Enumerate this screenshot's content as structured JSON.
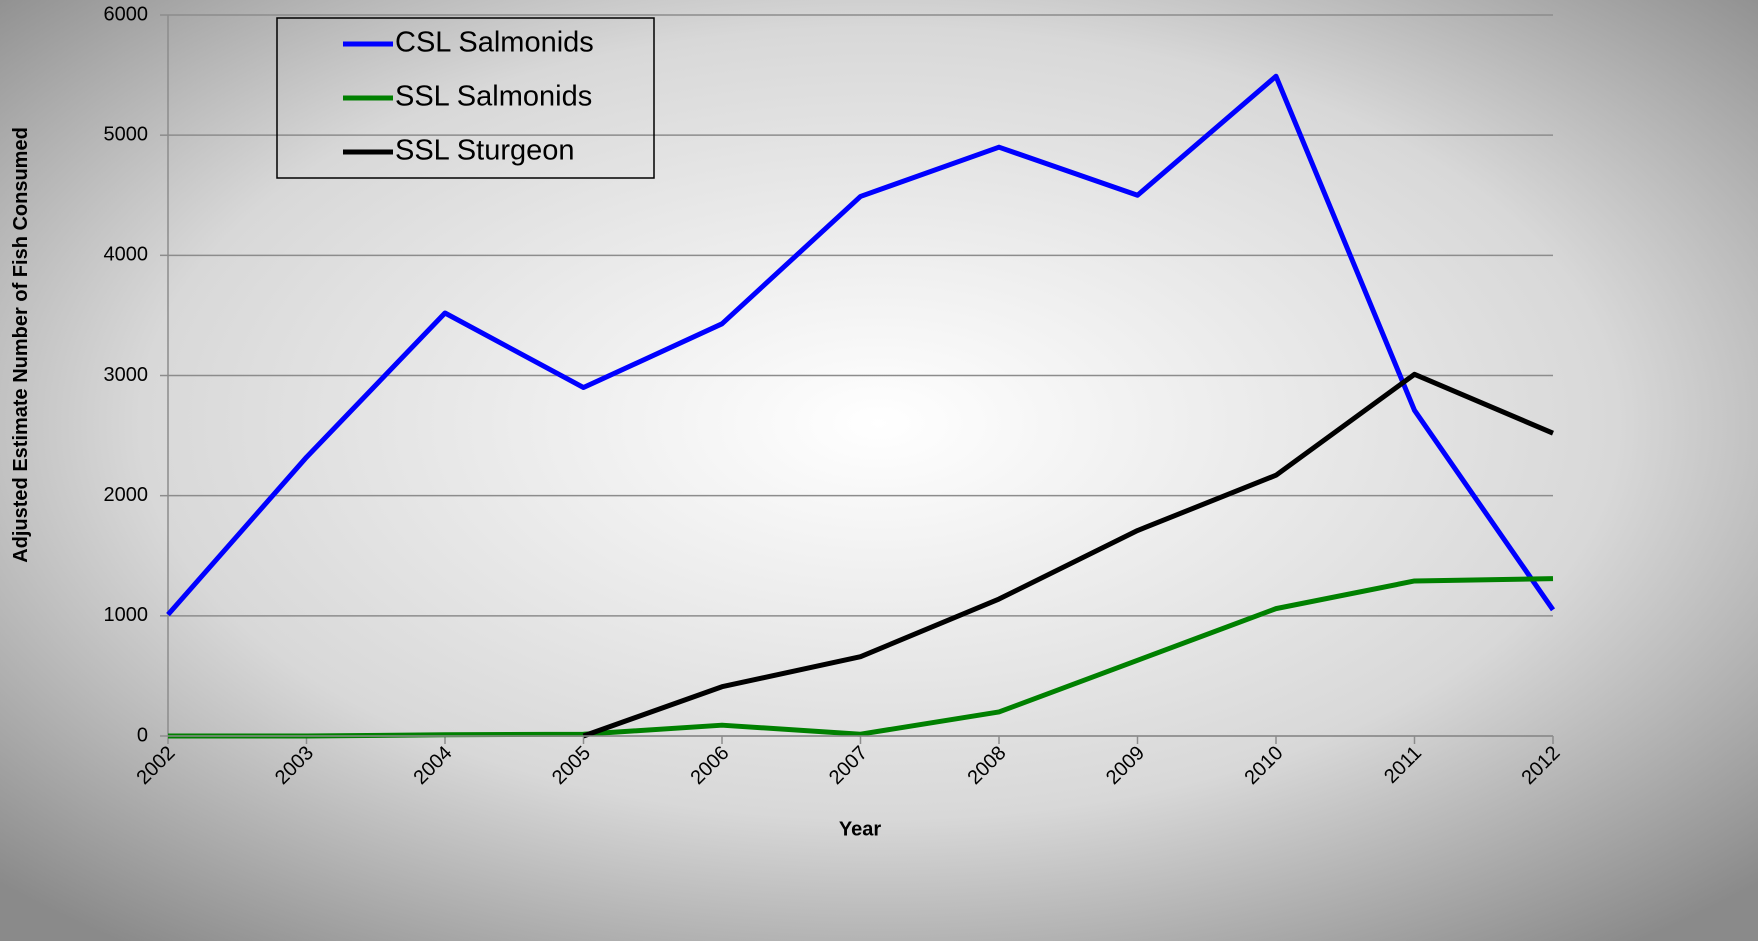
{
  "chart_data": {
    "type": "line",
    "x_label": "Year",
    "y_label": "Adjusted Estimate Number of Fish Consumed",
    "categories": [
      "2002",
      "2003",
      "2004",
      "2005",
      "2006",
      "2007",
      "2008",
      "2009",
      "2010",
      "2011",
      "2012"
    ],
    "series": [
      {
        "name": "CSL Salmonids",
        "color": "#0000ff",
        "values": [
          1010,
          2320,
          3520,
          2900,
          3430,
          4490,
          4900,
          4500,
          5490,
          2710,
          1050
        ]
      },
      {
        "name": "SSL Salmonids",
        "color": "#008000",
        "values": [
          0,
          0,
          10,
          15,
          90,
          15,
          200,
          630,
          1060,
          1290,
          1310
        ]
      },
      {
        "name": "SSL Sturgeon",
        "color": "#000000",
        "values": [
          null,
          null,
          null,
          0,
          410,
          660,
          1140,
          1710,
          2170,
          3010,
          2520
        ]
      }
    ],
    "ylim": [
      0,
      6000
    ],
    "yticks": [
      0,
      1000,
      2000,
      3000,
      4000,
      5000,
      6000
    ],
    "grid": true,
    "legend": "upper left"
  }
}
